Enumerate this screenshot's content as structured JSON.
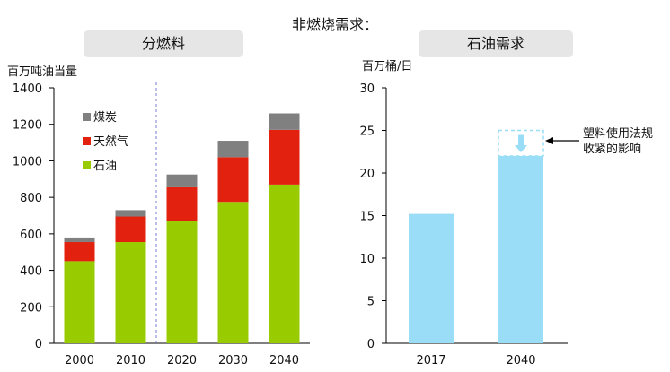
{
  "title": "非燃烧需求：",
  "chart_data": [
    {
      "type": "bar",
      "stacked": true,
      "panel_title": "分燃料",
      "ylabel": "百万吨油当量",
      "categories": [
        "2000",
        "2010",
        "2020",
        "2030",
        "2040"
      ],
      "ylim": [
        0,
        1400
      ],
      "yticks": [
        0,
        200,
        400,
        600,
        800,
        1000,
        1200,
        1400
      ],
      "series": [
        {
          "name": "石油",
          "color": "#99cc00",
          "values": [
            450,
            555,
            670,
            775,
            870
          ]
        },
        {
          "name": "天然气",
          "color": "#e3210f",
          "values": [
            105,
            140,
            185,
            245,
            300
          ]
        },
        {
          "name": "煤炭",
          "color": "#808080",
          "values": [
            25,
            35,
            70,
            90,
            90
          ]
        }
      ],
      "legend_position": "top-left",
      "divider_after_category": "2010"
    },
    {
      "type": "bar",
      "panel_title": "石油需求",
      "ylabel": "百万桶/日",
      "categories": [
        "2017",
        "2040"
      ],
      "values": [
        15.2,
        22
      ],
      "projected_upper": 25,
      "ylim": [
        0,
        30
      ],
      "yticks": [
        0,
        5,
        10,
        15,
        20,
        25,
        30
      ],
      "color": "#99ddf7",
      "annotation": [
        "塑料使用法规",
        "收紧的影响"
      ]
    }
  ]
}
